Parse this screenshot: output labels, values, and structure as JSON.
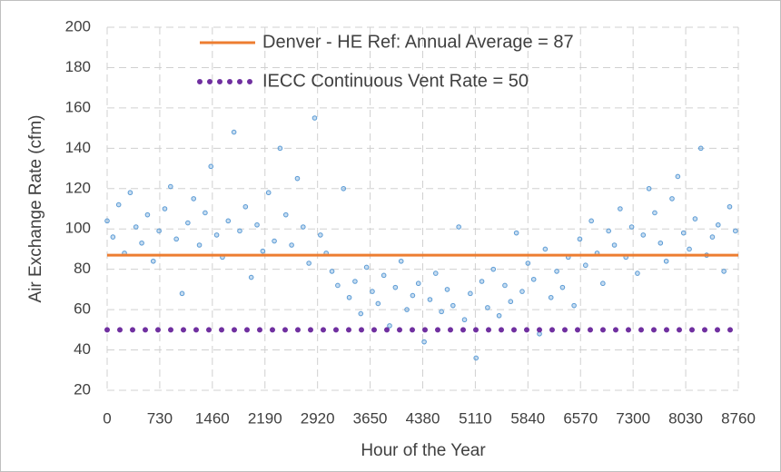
{
  "chart_data": {
    "type": "scatter",
    "xlabel": "Hour of the Year",
    "ylabel": "Air Exchange Rate (cfm)",
    "xlim": [
      0,
      8760
    ],
    "ylim": [
      20,
      200
    ],
    "xticks": [
      0,
      730,
      1460,
      2190,
      2920,
      3650,
      4380,
      5110,
      5840,
      6570,
      7300,
      8030,
      8760
    ],
    "yticks": [
      20,
      40,
      60,
      80,
      100,
      120,
      140,
      160,
      180,
      200
    ],
    "grid": true,
    "legend": "upper left",
    "series": [
      {
        "type": "scatter",
        "color": "#5b9bd5",
        "x": [
          0,
          80,
          160,
          240,
          320,
          400,
          480,
          560,
          640,
          720,
          800,
          880,
          960,
          1040,
          1120,
          1200,
          1280,
          1360,
          1440,
          1520,
          1600,
          1680,
          1760,
          1840,
          1920,
          2000,
          2080,
          2160,
          2240,
          2320,
          2400,
          2480,
          2560,
          2640,
          2720,
          2800,
          2880,
          2960,
          3040,
          3120,
          3200,
          3280,
          3360,
          3440,
          3520,
          3600,
          3680,
          3760,
          3840,
          3920,
          4000,
          4080,
          4160,
          4240,
          4320,
          4400,
          4480,
          4560,
          4640,
          4720,
          4800,
          4880,
          4960,
          5040,
          5120,
          5200,
          5280,
          5360,
          5440,
          5520,
          5600,
          5680,
          5760,
          5840,
          5920,
          6000,
          6080,
          6160,
          6240,
          6320,
          6400,
          6480,
          6560,
          6640,
          6720,
          6800,
          6880,
          6960,
          7040,
          7120,
          7200,
          7280,
          7360,
          7440,
          7520,
          7600,
          7680,
          7760,
          7840,
          7920,
          8000,
          8080,
          8160,
          8240,
          8320,
          8400,
          8480,
          8560,
          8640,
          8720
        ],
        "values": [
          104,
          96,
          112,
          88,
          118,
          101,
          93,
          107,
          84,
          99,
          110,
          121,
          95,
          68,
          103,
          115,
          92,
          108,
          131,
          97,
          86,
          104,
          148,
          99,
          111,
          76,
          102,
          89,
          118,
          94,
          140,
          107,
          92,
          125,
          101,
          83,
          155,
          97,
          88,
          79,
          72,
          120,
          66,
          74,
          58,
          81,
          69,
          63,
          77,
          52,
          71,
          84,
          60,
          67,
          73,
          44,
          65,
          78,
          59,
          70,
          62,
          101,
          55,
          68,
          36,
          74,
          61,
          80,
          57,
          72,
          64,
          98,
          69,
          83,
          75,
          48,
          90,
          66,
          79,
          71,
          86,
          62,
          95,
          82,
          104,
          88,
          73,
          99,
          92,
          110,
          86,
          101,
          78,
          97,
          120,
          108,
          93,
          84,
          115,
          126,
          98,
          90,
          105,
          140,
          87,
          96,
          102,
          79,
          111,
          99
        ]
      },
      {
        "type": "line",
        "name": "Denver - HE Ref:  Annual Average = 87",
        "color": "#ed7d31",
        "style": "solid",
        "x": [
          0,
          8760
        ],
        "values": [
          87,
          87
        ]
      },
      {
        "type": "line",
        "name": "IECC Continuous Vent Rate = 50",
        "color": "#7030a0",
        "style": "dotted",
        "x": [
          0,
          8760
        ],
        "values": [
          50,
          50
        ]
      }
    ]
  }
}
